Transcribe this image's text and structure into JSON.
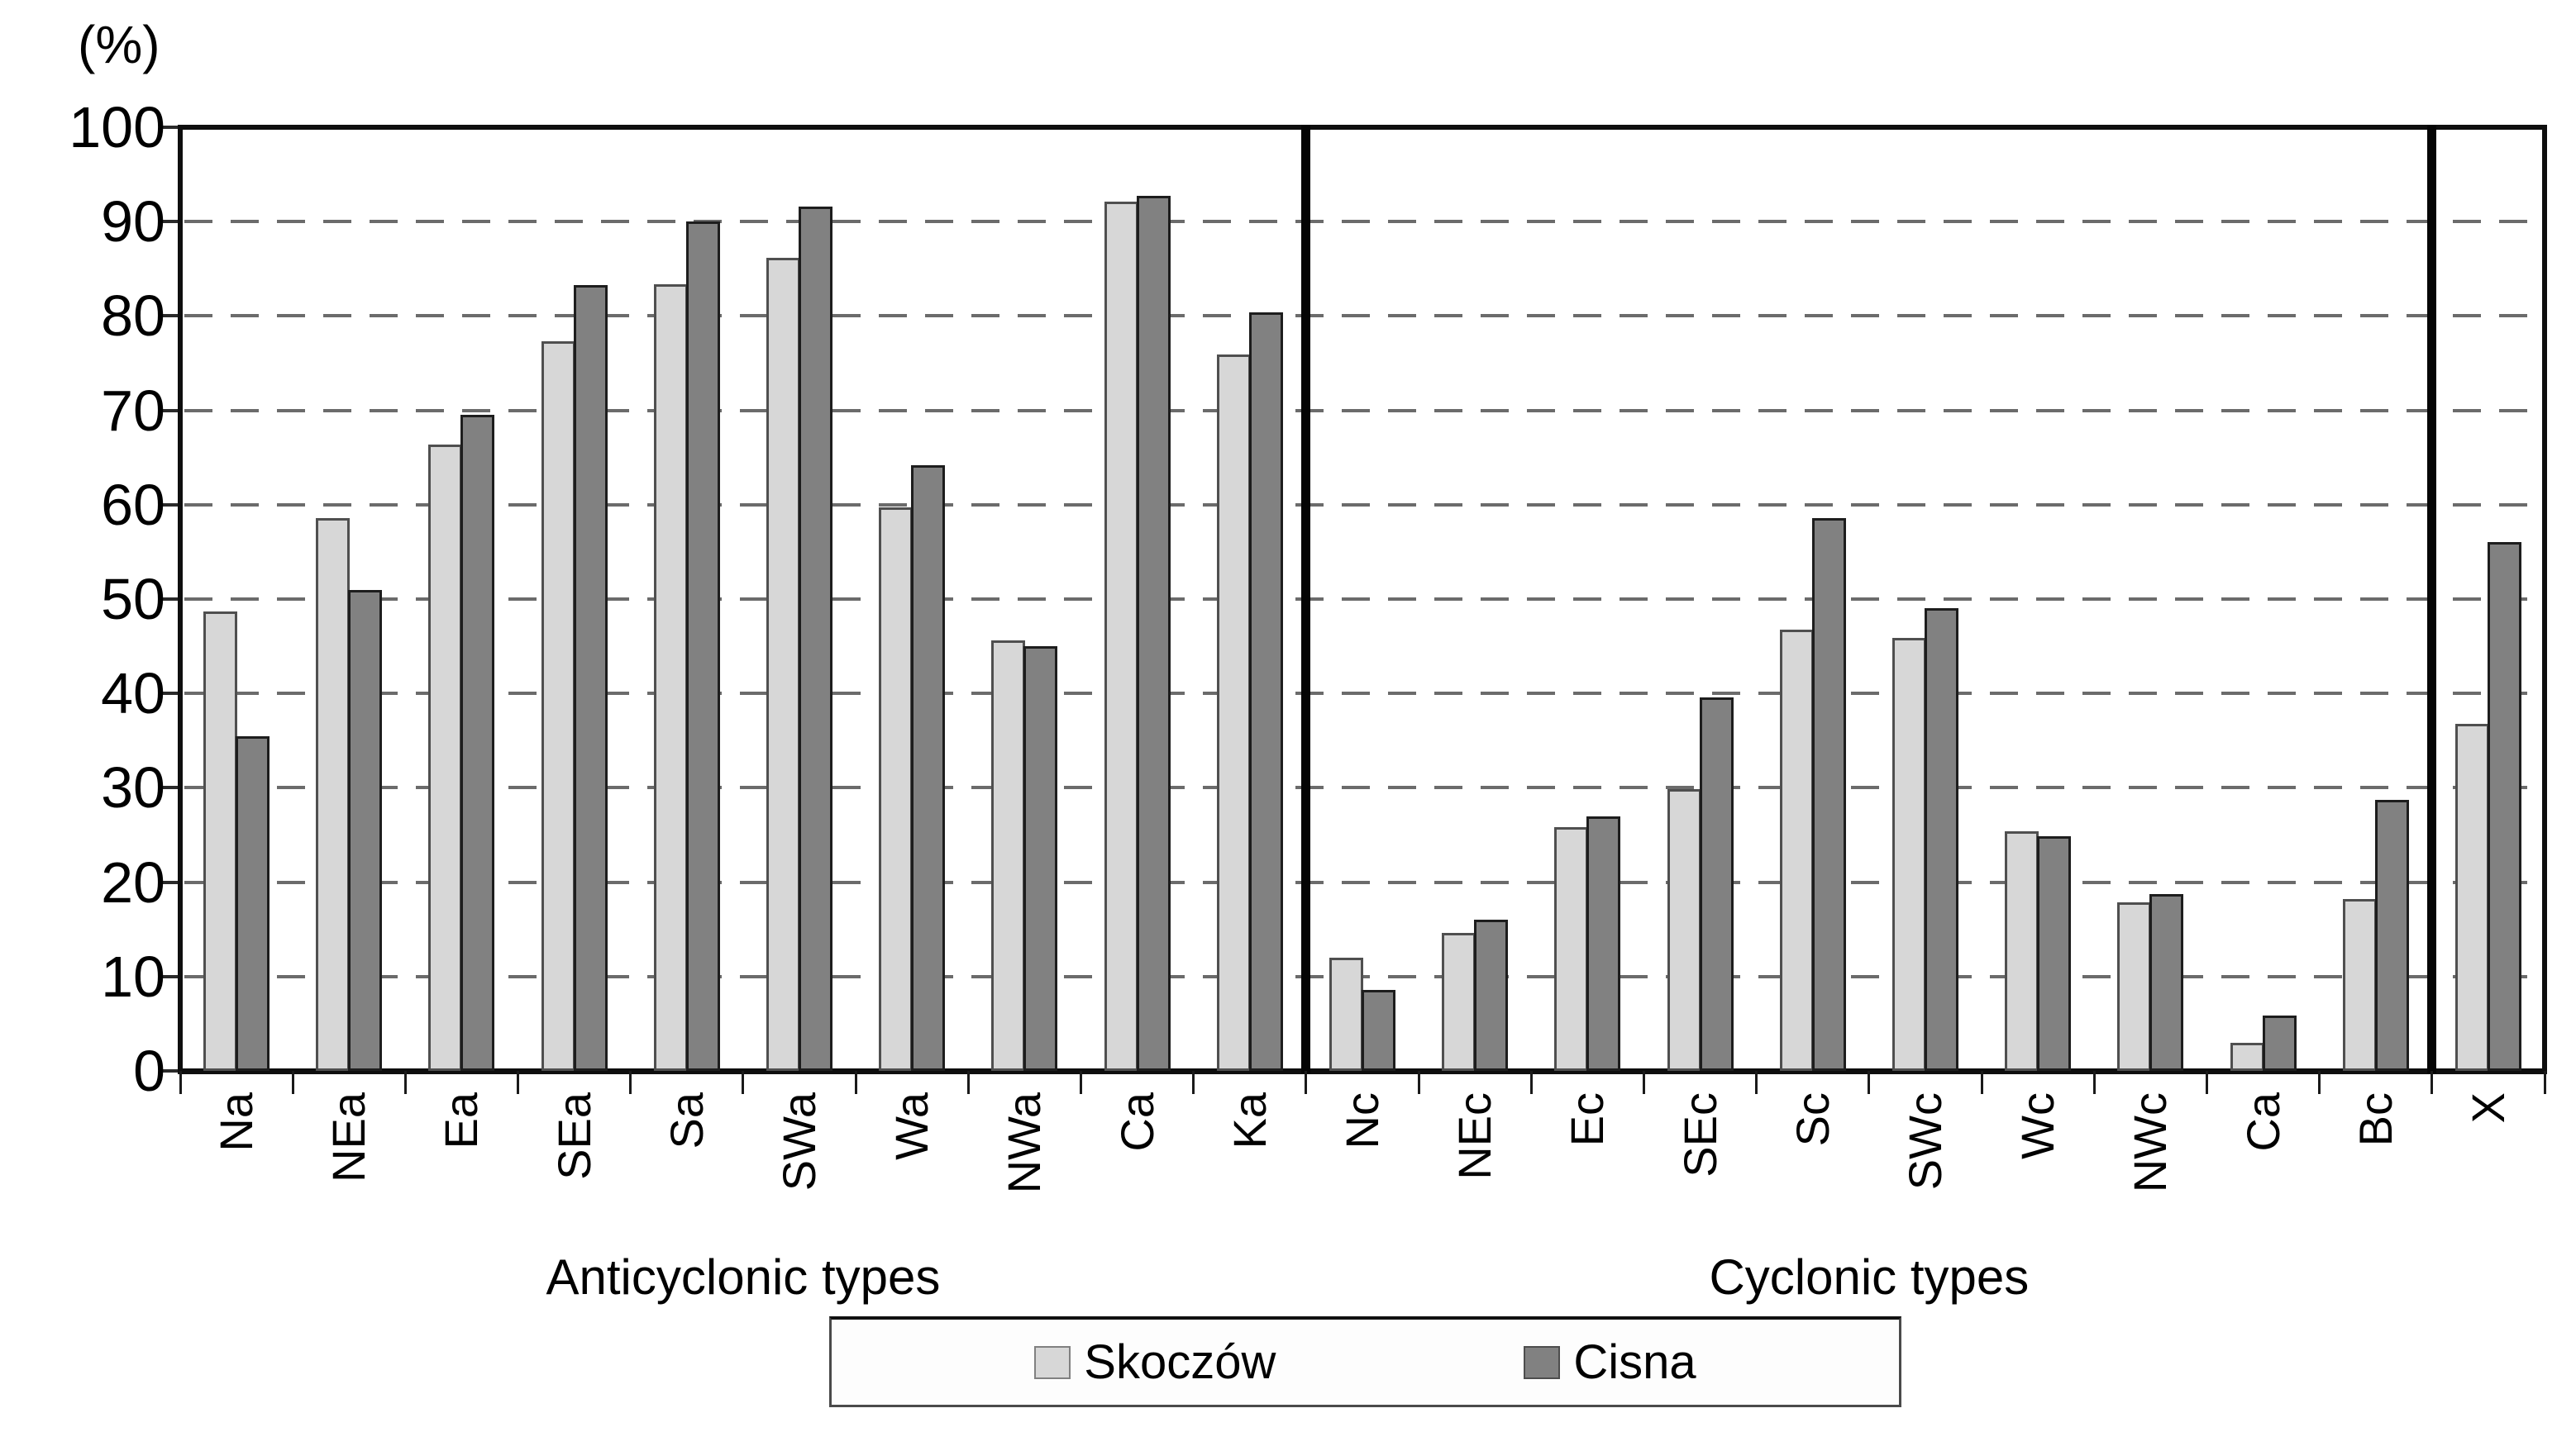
{
  "chart_data": {
    "type": "bar",
    "unit_label": "(%)",
    "ylim": [
      0,
      100
    ],
    "ytick_step": 10,
    "yticks": [
      "0",
      "10",
      "20",
      "30",
      "40",
      "50",
      "60",
      "70",
      "80",
      "90",
      "100"
    ],
    "grid": "dashed-horizontal",
    "legend_position": "bottom-center",
    "categories": [
      "Na",
      "NEa",
      "Ea",
      "SEa",
      "Sa",
      "SWa",
      "Wa",
      "NWa",
      "Ca",
      "Ka",
      "Nc",
      "NEc",
      "Ec",
      "SEc",
      "Sc",
      "SWc",
      "Wc",
      "NWc",
      "Ca",
      "Bc",
      "X"
    ],
    "series": [
      {
        "name": "Skoczów",
        "color": "#d7d7d7",
        "border_color": "#4f4f4f",
        "values": [
          48.7,
          58.6,
          66.4,
          77.3,
          83.4,
          86.2,
          59.7,
          45.6,
          92.1,
          75.9,
          12.0,
          14.6,
          25.8,
          29.9,
          46.8,
          45.9,
          25.4,
          17.9,
          3.0,
          18.2,
          36.8
        ]
      },
      {
        "name": "Cisna",
        "color": "#818181",
        "border_color": "#1d1d1d",
        "values": [
          35.5,
          51.0,
          69.5,
          83.3,
          90.0,
          91.6,
          64.2,
          45.0,
          92.7,
          80.4,
          8.6,
          16.0,
          27.0,
          39.6,
          58.6,
          49.0,
          24.9,
          18.7,
          5.9,
          28.7,
          56.0
        ]
      }
    ],
    "sections": [
      {
        "label": "Anticyclonic types",
        "start": 0,
        "end": 9
      },
      {
        "label": "Cyclonic types",
        "start": 10,
        "end": 19
      },
      {
        "label": "",
        "start": 20,
        "end": 20
      }
    ]
  }
}
